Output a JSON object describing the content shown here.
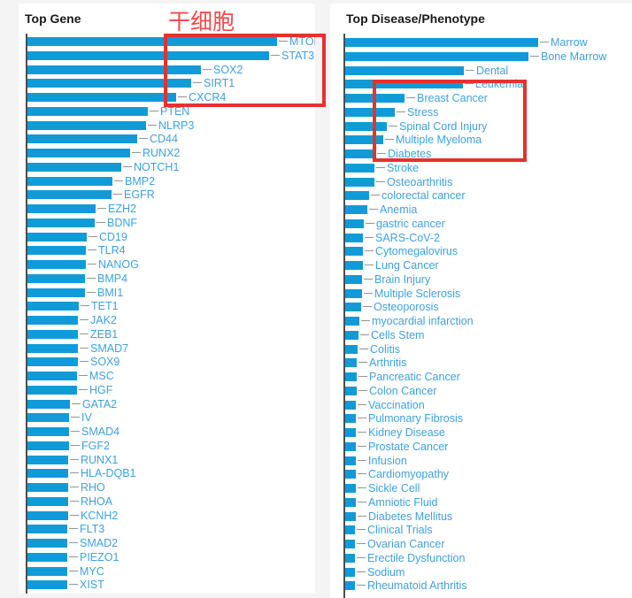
{
  "annotation": {
    "text": "干细胞"
  },
  "colors": {
    "bar": "#109bd8",
    "label": "#3fa0df",
    "tick": "#949494",
    "axis": "#4d4d4d",
    "title": "#1a1a1a",
    "annotation_red": "#f34b4b",
    "highlight_box_red": "#e7302f",
    "page_gray": "#f4f4f4"
  },
  "chart_data": [
    {
      "type": "bar",
      "orientation": "horizontal",
      "title": "Top Gene",
      "value_axis_labels_shown": false,
      "units": "relative bar length in px (no numeric axis shown)",
      "categories": [
        "MTOR",
        "STAT3",
        "SOX2",
        "SIRT1",
        "CXCR4",
        "PTEN",
        "NLRP3",
        "CD44",
        "RUNX2",
        "NOTCH1",
        "BMP2",
        "EGFR",
        "EZH2",
        "BDNF",
        "CD19",
        "TLR4",
        "NANOG",
        "BMP4",
        "BMI1",
        "TET1",
        "JAK2",
        "ZEB1",
        "SMAD7",
        "SOX9",
        "MSC",
        "HGF",
        "GATA2",
        "IV",
        "SMAD4",
        "FGF2",
        "RUNX1",
        "HLA-DQB1",
        "RHO",
        "RHOA",
        "KCNH2",
        "FLT3",
        "SMAD2",
        "PIEZO1",
        "MYC",
        "XIST"
      ],
      "values": [
        282,
        273,
        196,
        185,
        168,
        136,
        134,
        124,
        116,
        106,
        96,
        95,
        77,
        76,
        67,
        66,
        66,
        65,
        65,
        58,
        57,
        57,
        57,
        57,
        56,
        56,
        48,
        47,
        47,
        47,
        46,
        46,
        46,
        46,
        46,
        45,
        45,
        45,
        45,
        45
      ],
      "highlighted_range": {
        "from": "MTOR",
        "to": "CXCR4"
      }
    },
    {
      "type": "bar",
      "orientation": "horizontal",
      "title": "Top Disease/Phenotype",
      "value_axis_labels_shown": false,
      "units": "relative bar length in px (no numeric axis shown)",
      "categories": [
        "Marrow",
        "Bone Marrow",
        "Dental",
        "Leukemia",
        "Breast Cancer",
        "Stress",
        "Spinal Cord Injury",
        "Multiple Myeloma",
        "Diabetes",
        "Stroke",
        "Osteoarthritis",
        "colorectal cancer",
        "Anemia",
        "gastric cancer",
        "SARS-CoV-2",
        "Cytomegalovirus",
        "Lung Cancer",
        "Brain Injury",
        "Multiple Sclerosis",
        "Osteoporosis",
        "myocardial infarction",
        "Cells Stem",
        "Colitis",
        "Arthritis",
        "Pancreatic Cancer",
        "Colon Cancer",
        "Vaccination",
        "Pulmonary Fibrosis",
        "Kidney Disease",
        "Prostate Cancer",
        "Infusion",
        "Cardiomyopathy",
        "Sickle Cell",
        "Amniotic Fluid",
        "Diabetes Mellitus",
        "Clinical Trials",
        "Ovarian Cancer",
        "Erectile Dysfunction",
        "Sodium",
        "Rheumatoid Arthritis"
      ],
      "values": [
        218,
        207,
        134,
        133,
        67,
        56,
        47,
        43,
        34,
        33,
        33,
        27,
        25,
        21,
        20,
        20,
        20,
        19,
        19,
        18,
        16,
        15,
        14,
        13,
        13,
        13,
        12,
        12,
        12,
        12,
        12,
        12,
        12,
        12,
        12,
        11,
        11,
        11,
        11,
        11
      ],
      "highlighted_range": {
        "from": "Leukemia",
        "to": "Diabetes"
      }
    }
  ]
}
